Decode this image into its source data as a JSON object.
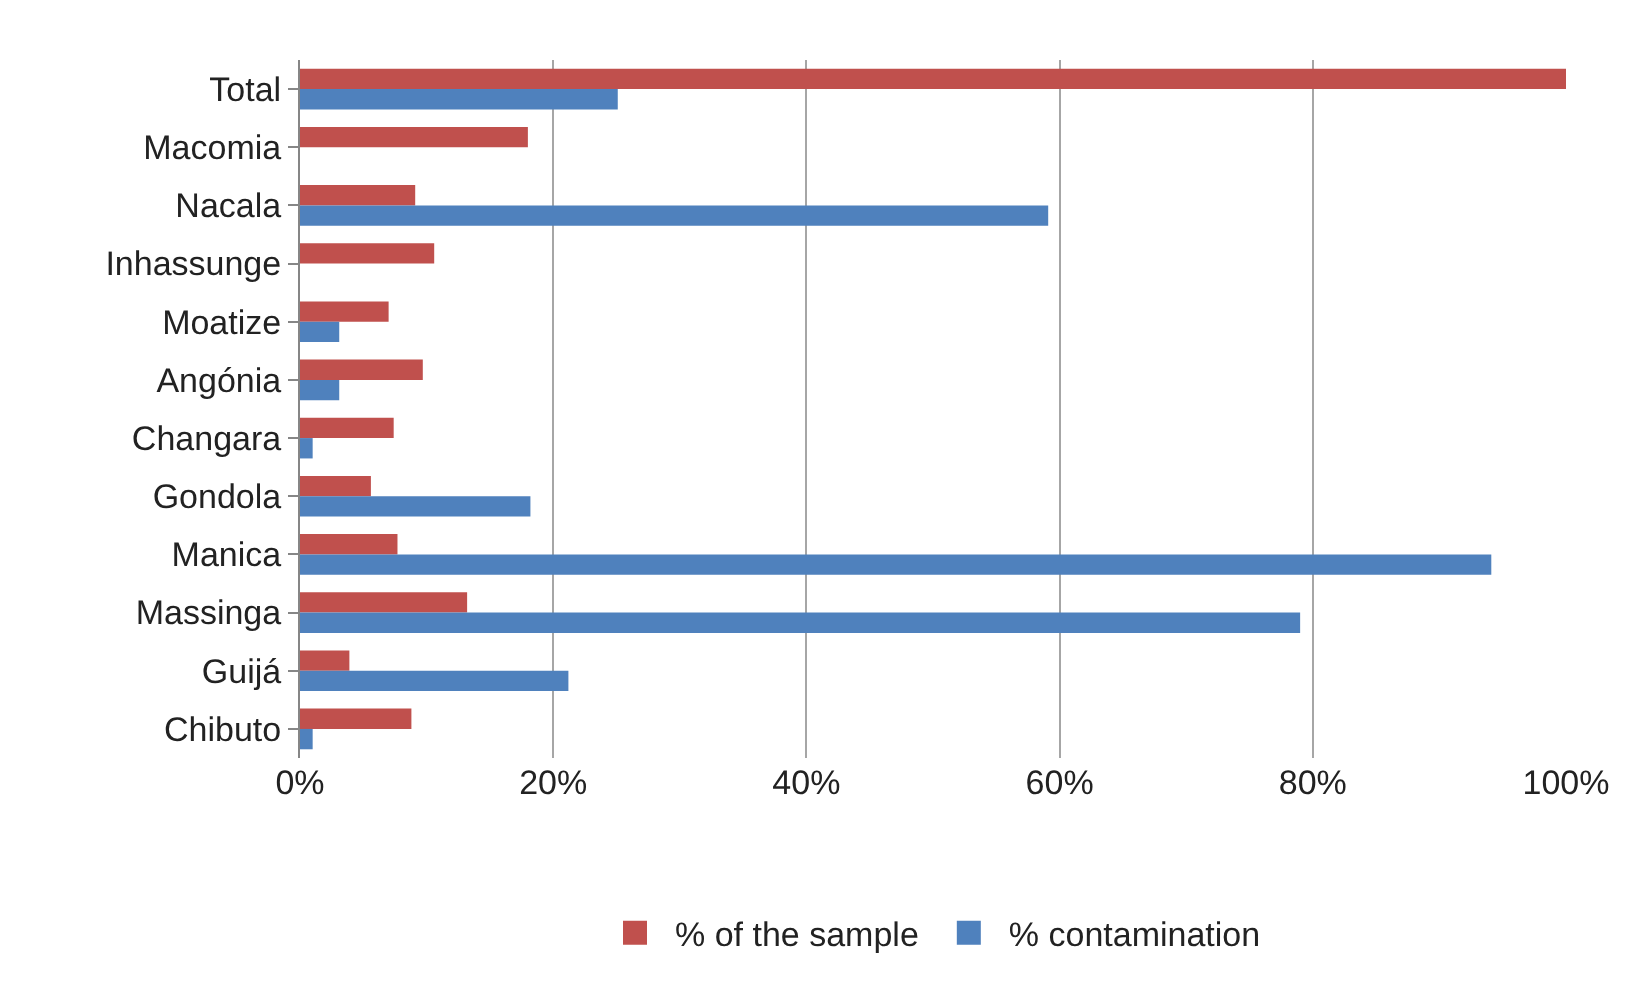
{
  "chart_data": {
    "type": "bar",
    "orientation": "horizontal",
    "categories": [
      "Total",
      "Macomia",
      "Nacala",
      "Inhassunge",
      "Moatize",
      "Angónia",
      "Changara",
      "Gondola",
      "Manica",
      "Massinga",
      "Guijá",
      "Chibuto"
    ],
    "series": [
      {
        "name": "% of the sample",
        "color": "#c0504d",
        "values": [
          100,
          18.0,
          9.1,
          10.6,
          7.0,
          9.7,
          7.4,
          5.6,
          7.7,
          13.2,
          3.9,
          8.8
        ]
      },
      {
        "name": "% contamination",
        "color": "#4f81bd",
        "values": [
          25.1,
          0,
          59.1,
          0,
          3.1,
          3.1,
          1.0,
          18.2,
          94.1,
          79.0,
          21.2,
          1.0
        ]
      }
    ],
    "xlim": [
      0,
      100
    ],
    "xticks": [
      {
        "value": 0,
        "label": "0%"
      },
      {
        "value": 20,
        "label": "20%"
      },
      {
        "value": 40,
        "label": "40%"
      },
      {
        "value": 60,
        "label": "60%"
      },
      {
        "value": 80,
        "label": "80%"
      },
      {
        "value": 100,
        "label": "100%"
      }
    ],
    "grid": "x",
    "legend": "bottom"
  }
}
